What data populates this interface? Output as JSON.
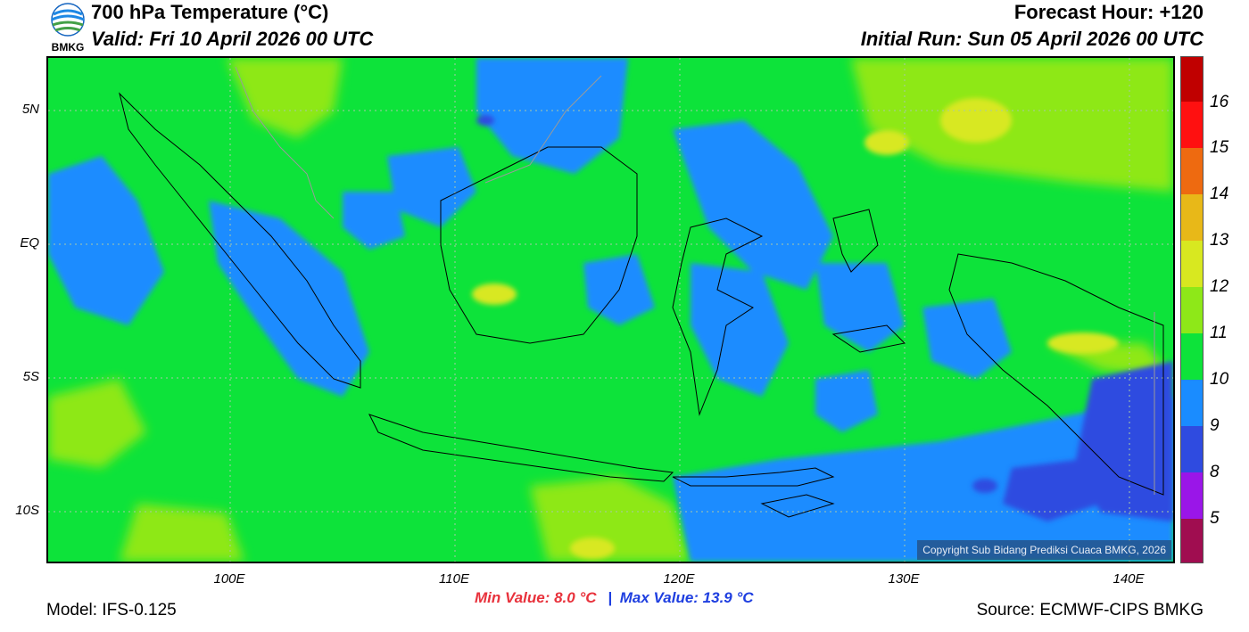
{
  "header": {
    "title": "700 hPa Temperature (°C)",
    "valid": "Valid: Fri 10 April 2026 00 UTC",
    "forecast_hour": "Forecast Hour: +120",
    "initial_run": "Initial Run: Sun 05 April 2026 00 UTC"
  },
  "logo": {
    "text": "BMKG",
    "icon": "bmkg-logo-icon"
  },
  "map": {
    "lat_labels": [
      "5N",
      "EQ",
      "5S",
      "10S"
    ],
    "lon_labels": [
      "100E",
      "110E",
      "120E",
      "130E",
      "140E"
    ],
    "copyright": "Copyright Sub Bidang Prediksi Cuaca BMKG, 2026",
    "lat_range": [
      -12,
      7
    ],
    "lon_range": [
      92,
      142
    ]
  },
  "colorbar": {
    "labels": [
      "16",
      "15",
      "14",
      "13",
      "12",
      "11",
      "10",
      "9",
      "8",
      "5"
    ],
    "colors": [
      "#c00000",
      "#ff1010",
      "#ee6a10",
      "#e8b818",
      "#d8e820",
      "#8ee818",
      "#0de33a",
      "#1a8cff",
      "#2f4be0",
      "#9a16e8",
      "#a00d50"
    ]
  },
  "footer": {
    "model": "Model: IFS-0.125",
    "min_value": "Min Value: 8.0 °C",
    "separator": "|",
    "max_value": "Max Value: 13.9 °C",
    "source": "Source: ECMWF-CIPS BMKG"
  },
  "colors": {
    "min": "#e8323c",
    "max": "#1f3fe0",
    "land_border": "#000000"
  }
}
